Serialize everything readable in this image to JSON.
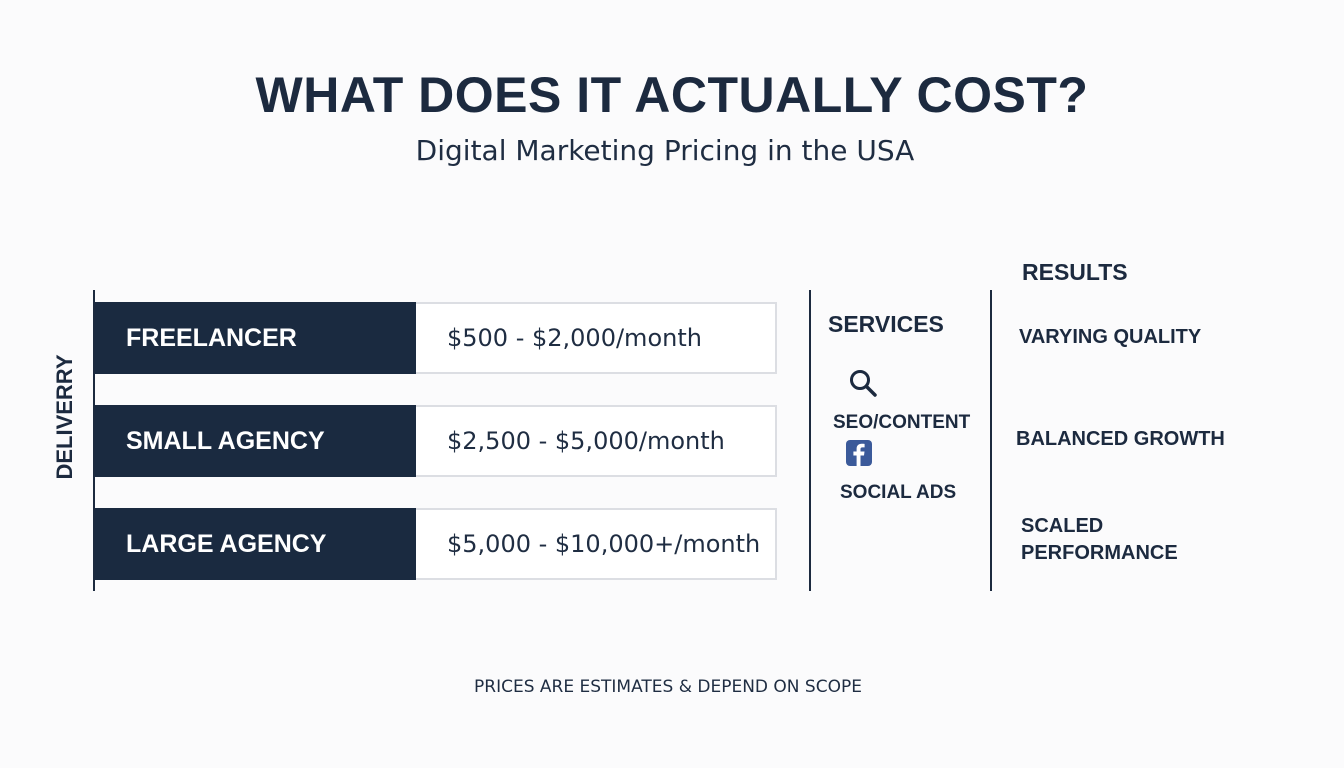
{
  "header": {
    "title": "WHAT DOES IT ACTUALLY COST?",
    "subtitle": "Digital Marketing Pricing in the USA"
  },
  "axis": {
    "label": "DELIVERRY"
  },
  "tiers": [
    {
      "name": "FREELANCER",
      "price": "$500 - $2,000/month"
    },
    {
      "name": "SMALL AGENCY",
      "price": "$2,500 - $5,000/month"
    },
    {
      "name": "LARGE AGENCY",
      "price": "$5,000 - $10,000+/month"
    }
  ],
  "services": {
    "heading": "SERVICES",
    "items": [
      {
        "label": "SEO/CONTENT",
        "icon": "search-icon"
      },
      {
        "label": "SOCIAL ADS",
        "icon": "facebook-icon"
      }
    ]
  },
  "results": {
    "heading": "RESULTS",
    "items": [
      {
        "label": "VARYING QUALITY"
      },
      {
        "label": "BALANCED GROWTH"
      },
      {
        "label": "SCALED\nPERFORMANCE"
      }
    ]
  },
  "footer": {
    "note": "PRICES ARE ESTIMATES & DEPEND ON SCOPE"
  },
  "colors": {
    "navy": "#1a2a40",
    "text": "#1c2a3f",
    "background": "#fbfbfc",
    "facebook": "#3b5a9a"
  }
}
